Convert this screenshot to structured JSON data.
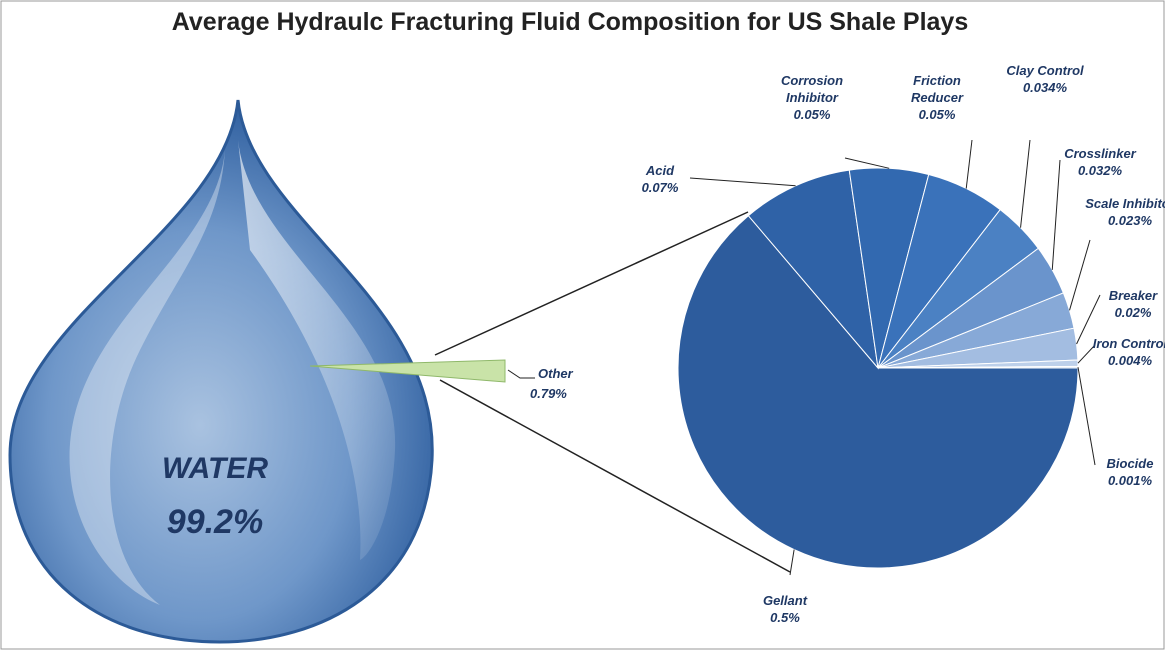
{
  "chart_data": {
    "type": "pie",
    "title": "Average Hydraulc Fracturing Fluid Composition for US Shale Plays",
    "outer": {
      "categories": [
        "WATER",
        "Other"
      ],
      "values": [
        99.2,
        0.79
      ],
      "value_labels": [
        "99.2%",
        "0.79%"
      ]
    },
    "categories": [
      "Gellant",
      "Acid",
      "Corrosion Inhibitor",
      "Friction Reducer",
      "Clay Control",
      "Crosslinker",
      "Scale Inhibitor",
      "Breaker",
      "Iron Control",
      "Biocide"
    ],
    "values": [
      0.5,
      0.07,
      0.05,
      0.05,
      0.034,
      0.032,
      0.023,
      0.02,
      0.004,
      0.001
    ],
    "value_labels": [
      "0.5%",
      "0.07%",
      "0.05%",
      "0.05%",
      "0.034%",
      "0.032%",
      "0.023%",
      "0.02%",
      "0.004%",
      "0.001%"
    ],
    "colors": [
      "#2d5c9d",
      "#2f62a7",
      "#3269b0",
      "#3a72ba",
      "#4b81c3",
      "#6a94cc",
      "#87a9d7",
      "#a3bde1",
      "#bdd0ea",
      "#d4e1f2"
    ]
  }
}
